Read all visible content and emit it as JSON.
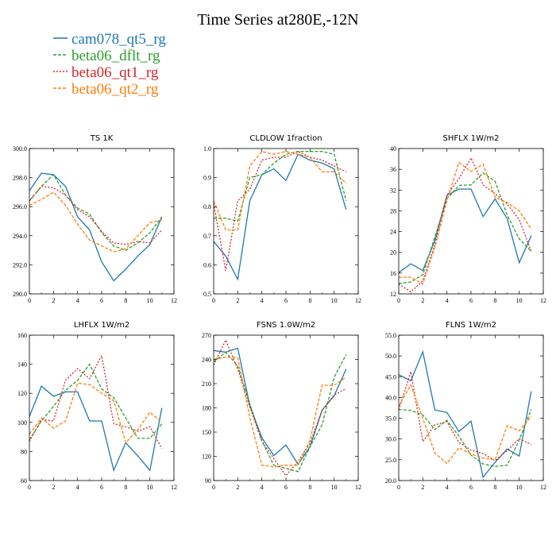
{
  "figure": {
    "title": "Time Series at280E,-12N",
    "legend": [
      {
        "name": "cam078_qt5_rg",
        "color": "#1f77b4",
        "dash": "solid"
      },
      {
        "name": "beta06_dflt_rg",
        "color": "#2ca02c",
        "dash": "dashed"
      },
      {
        "name": "beta06_qt1_rg",
        "color": "#d62728",
        "dash": "dotted"
      },
      {
        "name": "beta06_qt2_rg",
        "color": "#ff7f0e",
        "dash": "dashed"
      }
    ]
  },
  "chart_data": [
    {
      "type": "line",
      "title": "TS   1K",
      "xlim": [
        0,
        12
      ],
      "xticks": [
        0,
        2,
        4,
        6,
        8,
        10,
        12
      ],
      "ylim": [
        290,
        300
      ],
      "yticks": [
        "290.0",
        "292.0",
        "294.0",
        "296.0",
        "298.0",
        "300.0"
      ],
      "x": [
        0,
        1,
        2,
        3,
        4,
        5,
        6,
        7,
        8,
        9,
        10,
        11
      ],
      "series": [
        {
          "name": "cam078_qt5_rg",
          "values": [
            297.1,
            298.3,
            298.2,
            297.4,
            295.3,
            294.4,
            292.2,
            290.9,
            291.7,
            292.6,
            293.4,
            295.3
          ]
        },
        {
          "name": "beta06_dflt_rg",
          "values": [
            296.4,
            297.4,
            298.2,
            296.8,
            295.9,
            295.5,
            294.2,
            293.3,
            293.0,
            293.5,
            294.2,
            295.3
          ]
        },
        {
          "name": "beta06_qt1_rg",
          "values": [
            296.4,
            297.4,
            297.3,
            296.8,
            295.8,
            295.3,
            294.3,
            293.5,
            293.4,
            293.6,
            293.5,
            294.4
          ]
        },
        {
          "name": "beta06_qt2_rg",
          "values": [
            296.1,
            296.5,
            297.0,
            296.1,
            294.8,
            293.7,
            293.3,
            292.9,
            293.1,
            294.0,
            294.9,
            295.1
          ]
        }
      ]
    },
    {
      "type": "line",
      "title": "CLDLOW   1fraction",
      "xlim": [
        0,
        12
      ],
      "xticks": [
        0,
        2,
        4,
        6,
        8,
        10,
        12
      ],
      "ylim": [
        0.5,
        1.0
      ],
      "yticks": [
        "0.5",
        "0.6",
        "0.7",
        "0.8",
        "0.9",
        "1.0"
      ],
      "x": [
        0,
        1,
        2,
        3,
        4,
        5,
        6,
        7,
        8,
        9,
        10,
        11
      ],
      "series": [
        {
          "name": "cam078_qt5_rg",
          "values": [
            0.68,
            0.63,
            0.55,
            0.82,
            0.91,
            0.93,
            0.89,
            0.98,
            0.96,
            0.95,
            0.93,
            0.79
          ]
        },
        {
          "name": "beta06_dflt_rg",
          "values": [
            0.76,
            0.76,
            0.75,
            0.9,
            0.91,
            0.95,
            0.98,
            0.99,
            0.99,
            0.99,
            0.98,
            0.82
          ]
        },
        {
          "name": "beta06_qt1_rg",
          "values": [
            0.81,
            0.58,
            0.82,
            0.86,
            0.96,
            0.97,
            0.97,
            0.99,
            0.97,
            0.96,
            0.94,
            0.92
          ]
        },
        {
          "name": "beta06_qt2_rg",
          "values": [
            0.82,
            0.72,
            0.72,
            0.94,
            0.99,
            0.98,
            0.99,
            0.98,
            0.97,
            0.92,
            0.92,
            0.88
          ]
        }
      ]
    },
    {
      "type": "line",
      "title": "SHFLX   1W/m2",
      "xlim": [
        0,
        12
      ],
      "xticks": [
        0,
        2,
        4,
        6,
        8,
        10,
        12
      ],
      "ylim": [
        12,
        40
      ],
      "yticks": [
        "12",
        "16",
        "20",
        "24",
        "28",
        "32",
        "36",
        "40"
      ],
      "x": [
        0,
        1,
        2,
        3,
        4,
        5,
        6,
        7,
        8,
        9,
        10,
        11
      ],
      "series": [
        {
          "name": "cam078_qt5_rg",
          "values": [
            16.1,
            17.8,
            16.5,
            22.3,
            31.0,
            32.2,
            32.2,
            26.9,
            30.3,
            26.5,
            18.0,
            23.2
          ]
        },
        {
          "name": "beta06_dflt_rg",
          "values": [
            14.0,
            14.3,
            15.7,
            23.0,
            30.3,
            32.9,
            33.0,
            35.3,
            33.7,
            27.2,
            22.6,
            20.2
          ]
        },
        {
          "name": "beta06_qt1_rg",
          "values": [
            13.9,
            12.4,
            14.5,
            21.5,
            31.0,
            34.2,
            38.2,
            33.0,
            31.3,
            29.3,
            26.3,
            20.2
          ]
        },
        {
          "name": "beta06_qt2_rg",
          "values": [
            15.2,
            15.2,
            13.9,
            21.0,
            30.0,
            37.3,
            35.6,
            37.0,
            30.6,
            29.6,
            28.0,
            24.5
          ]
        }
      ]
    },
    {
      "type": "line",
      "title": "LHFLX   1W/m2",
      "xlim": [
        0,
        12
      ],
      "xticks": [
        0,
        2,
        4,
        6,
        8,
        10,
        12
      ],
      "ylim": [
        60,
        160
      ],
      "yticks": [
        "60",
        "80",
        "100",
        "120",
        "140",
        "160"
      ],
      "x": [
        0,
        1,
        2,
        3,
        4,
        5,
        6,
        7,
        8,
        9,
        10,
        11
      ],
      "series": [
        {
          "name": "cam078_qt5_rg",
          "values": [
            104,
            125,
            118,
            121,
            121,
            101,
            101,
            67,
            86,
            77,
            67,
            110
          ]
        },
        {
          "name": "beta06_dflt_rg",
          "values": [
            88,
            101,
            111,
            122,
            129,
            140,
            123,
            117,
            103,
            89,
            89,
            99
          ]
        },
        {
          "name": "beta06_qt1_rg",
          "values": [
            87,
            102,
            101,
            129,
            137,
            130,
            146,
            99,
            97,
            94,
            97,
            82
          ]
        },
        {
          "name": "beta06_qt2_rg",
          "values": [
            92,
            103,
            96,
            101,
            127,
            126,
            120,
            115,
            86,
            95,
            107,
            100
          ]
        }
      ]
    },
    {
      "type": "line",
      "title": "FSNS   1.0W/m2",
      "xlim": [
        0,
        12
      ],
      "xticks": [
        0,
        2,
        4,
        6,
        8,
        10,
        12
      ],
      "ylim": [
        90,
        270
      ],
      "yticks": [
        "90",
        "120",
        "150",
        "180",
        "210",
        "240",
        "270"
      ],
      "x": [
        0,
        1,
        2,
        3,
        4,
        5,
        6,
        7,
        8,
        9,
        10,
        11
      ],
      "series": [
        {
          "name": "cam078_qt5_rg",
          "values": [
            251,
            249,
            254,
            183,
            143,
            121,
            134,
            110,
            132,
            177,
            195,
            228
          ]
        },
        {
          "name": "beta06_dflt_rg",
          "values": [
            237,
            249,
            232,
            185,
            139,
            109,
            105,
            101,
            132,
            159,
            218,
            246
          ]
        },
        {
          "name": "beta06_qt1_rg",
          "values": [
            233,
            264,
            228,
            181,
            139,
            117,
            96,
            114,
            136,
            177,
            196,
            204
          ]
        },
        {
          "name": "beta06_qt2_rg",
          "values": [
            240,
            243,
            242,
            168,
            109,
            107,
            109,
            109,
            140,
            208,
            208,
            218
          ]
        }
      ]
    },
    {
      "type": "line",
      "title": "FLNS   1W/m2",
      "xlim": [
        0,
        12
      ],
      "xticks": [
        0,
        2,
        4,
        6,
        8,
        10,
        12
      ],
      "ylim": [
        20,
        55
      ],
      "yticks": [
        "20.0",
        "25.0",
        "30.0",
        "35.0",
        "40.0",
        "45.0",
        "50.0",
        "55.0"
      ],
      "x": [
        0,
        1,
        2,
        3,
        4,
        5,
        6,
        7,
        8,
        9,
        10,
        11
      ],
      "series": [
        {
          "name": "cam078_qt5_rg",
          "values": [
            45.5,
            44.0,
            51.0,
            37.0,
            36.4,
            31.8,
            34.3,
            20.8,
            24.4,
            27.6,
            25.9,
            41.5
          ]
        },
        {
          "name": "beta06_dflt_rg",
          "values": [
            37.1,
            36.9,
            35.8,
            32.3,
            34.5,
            30.7,
            26.1,
            24.0,
            23.4,
            23.7,
            29.8,
            37.1
          ]
        },
        {
          "name": "beta06_qt1_rg",
          "values": [
            37.0,
            46.2,
            29.4,
            33.4,
            34.2,
            29.2,
            27.3,
            26.5,
            24.8,
            27.2,
            30.1,
            28.7
          ]
        },
        {
          "name": "beta06_qt2_rg",
          "values": [
            37.9,
            43.0,
            35.0,
            26.6,
            24.1,
            27.9,
            26.4,
            25.4,
            25.0,
            33.2,
            32.0,
            35.5
          ]
        }
      ]
    }
  ]
}
